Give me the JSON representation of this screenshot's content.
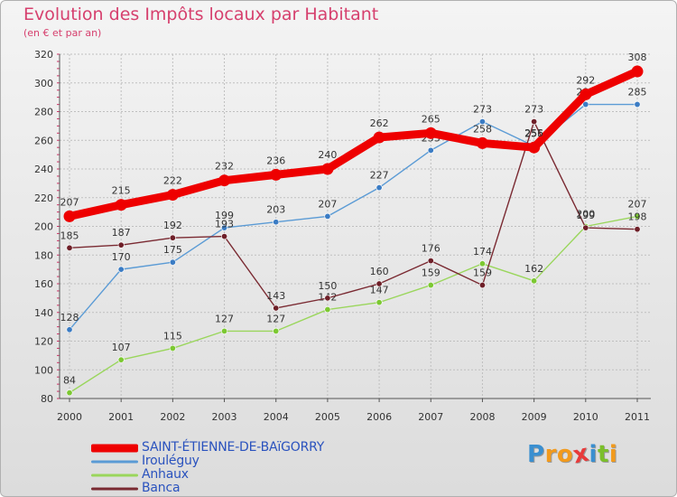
{
  "chart_data": {
    "type": "line",
    "title": "Evolution des Impôts locaux par Habitant",
    "subtitle": "(en € et par an)",
    "xlabel": "",
    "ylabel": "",
    "categories": [
      "2000",
      "2001",
      "2002",
      "2003",
      "2004",
      "2005",
      "2006",
      "2007",
      "2008",
      "2009",
      "2010",
      "2011"
    ],
    "ylim": [
      80,
      320
    ],
    "yticks": [
      80,
      100,
      120,
      140,
      160,
      180,
      200,
      220,
      240,
      260,
      280,
      300,
      320
    ],
    "grid": true,
    "legend_position": "bottom-left",
    "series": [
      {
        "name": "Irouléguy",
        "color": "#5b9bd5",
        "marker_color": "#3b7cc4",
        "values": [
          128,
          170,
          175,
          199,
          203,
          207,
          227,
          253,
          273,
          256,
          285,
          285
        ]
      },
      {
        "name": "Anhaux",
        "color": "#9ad65c",
        "marker_color": "#7cc832",
        "values": [
          84,
          107,
          115,
          127,
          127,
          142,
          147,
          159,
          174,
          162,
          200,
          207
        ]
      },
      {
        "name": "Banca",
        "color": "#7a2a32",
        "marker_color": "#6e1f28",
        "values": [
          185,
          187,
          192,
          193,
          143,
          150,
          160,
          176,
          159,
          273,
          199,
          198
        ]
      },
      {
        "name": "SAINT-ÉTIENNE-DE-BAïGORRY",
        "color": "#ee0000",
        "marker_color": "#ee0000",
        "values": [
          207,
          215,
          222,
          232,
          236,
          240,
          262,
          265,
          258,
          255,
          292,
          308
        ]
      }
    ],
    "legend_order": [
      3,
      0,
      1,
      2
    ]
  },
  "logo": {
    "letters": [
      "P",
      "r",
      "o",
      "x",
      "i",
      "t",
      "i"
    ],
    "colors": [
      "#3a8fd0",
      "#f29a1c",
      "#f29a1c",
      "#e83a3a",
      "#3a8fd0",
      "#7bbf2a",
      "#f29a1c"
    ]
  }
}
